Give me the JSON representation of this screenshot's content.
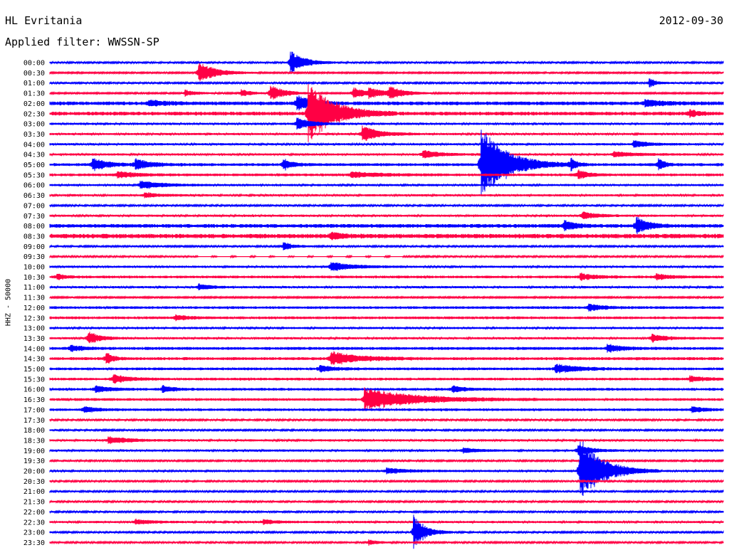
{
  "header": {
    "station": "HL Evritania",
    "date": "2012-09-30",
    "filter": "Applied filter: WWSSN-SP"
  },
  "colors": {
    "even_hour": "#0000ff",
    "half_hour": "#ff0044"
  },
  "chart_data": {
    "type": "line",
    "title": "HL Evritania",
    "subtitle": "Applied filter: WWSSN-SP",
    "ylabel": "HHZ - 50000",
    "xlabel": "",
    "grid": false,
    "legend": "none",
    "row_labels": [
      "00:00",
      "00:30",
      "01:00",
      "01:30",
      "02:00",
      "02:30",
      "03:00",
      "03:30",
      "04:00",
      "04:30",
      "05:00",
      "05:30",
      "06:00",
      "06:30",
      "07:00",
      "07:30",
      "08:00",
      "08:30",
      "09:00",
      "09:30",
      "10:00",
      "10:30",
      "11:00",
      "11:30",
      "12:00",
      "12:30",
      "13:00",
      "13:30",
      "14:00",
      "14:30",
      "15:00",
      "15:30",
      "16:00",
      "16:30",
      "17:00",
      "17:30",
      "18:00",
      "18:30",
      "19:00",
      "19:30",
      "20:00",
      "20:30",
      "21:00",
      "21:30",
      "22:00",
      "22:30",
      "23:00",
      "23:30"
    ],
    "x_unit": "minutes into row (0-30)",
    "noise_levels": [
      1.2,
      1.0,
      1.2,
      1.0,
      2.5,
      2.5,
      1.5,
      1.5,
      1.5,
      1.5,
      2.0,
      1.8,
      1.5,
      1.5,
      1.2,
      1.5,
      2.5,
      3.0,
      1.2,
      1.2,
      1.5,
      1.8,
      1.5,
      1.0,
      1.8,
      1.8,
      1.5,
      1.5,
      2.0,
      2.0,
      1.8,
      1.8,
      1.8,
      1.8,
      1.8,
      1.2,
      1.2,
      1.5,
      1.5,
      1.2,
      1.5,
      1.2,
      1.2,
      1.2,
      1.2,
      1.5,
      1.2,
      1.2
    ],
    "events": [
      {
        "row": "00:00",
        "t": 10.7,
        "amp": 18,
        "dur": 1.0
      },
      {
        "row": "00:30",
        "t": 6.6,
        "amp": 16,
        "dur": 1.2
      },
      {
        "row": "01:00",
        "t": 26.7,
        "amp": 7,
        "dur": 0.5
      },
      {
        "row": "01:30",
        "t": 6.0,
        "amp": 5,
        "dur": 0.8
      },
      {
        "row": "01:30",
        "t": 8.5,
        "amp": 6,
        "dur": 0.8
      },
      {
        "row": "01:30",
        "t": 9.8,
        "amp": 12,
        "dur": 1.0
      },
      {
        "row": "01:30",
        "t": 13.5,
        "amp": 8,
        "dur": 1.0
      },
      {
        "row": "01:30",
        "t": 14.2,
        "amp": 6,
        "dur": 1.2
      },
      {
        "row": "01:30",
        "t": 15.1,
        "amp": 9,
        "dur": 1.0
      },
      {
        "row": "02:00",
        "t": 11.0,
        "amp": 12,
        "dur": 1.0
      },
      {
        "row": "02:00",
        "t": 4.4,
        "amp": 4,
        "dur": 1.2
      },
      {
        "row": "02:00",
        "t": 26.5,
        "amp": 5,
        "dur": 1.2
      },
      {
        "row": "02:30",
        "t": 11.5,
        "amp": 45,
        "dur": 1.8
      },
      {
        "row": "02:30",
        "t": 28.5,
        "amp": 6,
        "dur": 0.5
      },
      {
        "row": "03:00",
        "t": 11.0,
        "amp": 9,
        "dur": 1.0
      },
      {
        "row": "03:30",
        "t": 13.9,
        "amp": 12,
        "dur": 1.2
      },
      {
        "row": "04:00",
        "t": 26.0,
        "amp": 5,
        "dur": 1.0
      },
      {
        "row": "04:30",
        "t": 16.6,
        "amp": 6,
        "dur": 1.2
      },
      {
        "row": "04:30",
        "t": 25.1,
        "amp": 4,
        "dur": 1.5
      },
      {
        "row": "05:00",
        "t": 1.9,
        "amp": 10,
        "dur": 1.0
      },
      {
        "row": "05:00",
        "t": 3.8,
        "amp": 8,
        "dur": 1.0
      },
      {
        "row": "05:00",
        "t": 10.4,
        "amp": 8,
        "dur": 0.6
      },
      {
        "row": "05:00",
        "t": 19.2,
        "amp": 55,
        "dur": 1.8
      },
      {
        "row": "05:00",
        "t": 23.2,
        "amp": 10,
        "dur": 0.4
      },
      {
        "row": "05:00",
        "t": 27.1,
        "amp": 10,
        "dur": 0.4
      },
      {
        "row": "05:30",
        "t": 3.0,
        "amp": 5,
        "dur": 1.2
      },
      {
        "row": "05:30",
        "t": 13.4,
        "amp": 4,
        "dur": 2.0
      },
      {
        "row": "05:30",
        "t": 23.5,
        "amp": 7,
        "dur": 0.7
      },
      {
        "row": "06:00",
        "t": 4.0,
        "amp": 6,
        "dur": 1.5
      },
      {
        "row": "06:30",
        "t": 4.2,
        "amp": 4,
        "dur": 1.0
      },
      {
        "row": "07:30",
        "t": 23.7,
        "amp": 6,
        "dur": 1.0
      },
      {
        "row": "08:00",
        "t": 22.9,
        "amp": 10,
        "dur": 0.6
      },
      {
        "row": "08:00",
        "t": 26.1,
        "amp": 13,
        "dur": 0.8
      },
      {
        "row": "08:30",
        "t": 12.5,
        "amp": 5,
        "dur": 0.8
      },
      {
        "row": "09:00",
        "t": 10.4,
        "amp": 6,
        "dur": 0.7
      },
      {
        "row": "10:00",
        "t": 12.5,
        "amp": 7,
        "dur": 1.5
      },
      {
        "row": "10:30",
        "t": 0.3,
        "amp": 4,
        "dur": 0.6
      },
      {
        "row": "10:30",
        "t": 23.6,
        "amp": 5,
        "dur": 1.0
      },
      {
        "row": "10:30",
        "t": 27.0,
        "amp": 4,
        "dur": 1.0
      },
      {
        "row": "11:00",
        "t": 6.6,
        "amp": 5,
        "dur": 0.8
      },
      {
        "row": "12:00",
        "t": 24.0,
        "amp": 5,
        "dur": 1.0
      },
      {
        "row": "12:30",
        "t": 5.6,
        "amp": 4,
        "dur": 0.8
      },
      {
        "row": "13:30",
        "t": 1.7,
        "amp": 10,
        "dur": 0.8
      },
      {
        "row": "13:30",
        "t": 26.8,
        "amp": 6,
        "dur": 1.0
      },
      {
        "row": "14:00",
        "t": 0.9,
        "amp": 5,
        "dur": 0.8
      },
      {
        "row": "14:00",
        "t": 24.8,
        "amp": 6,
        "dur": 1.0
      },
      {
        "row": "14:30",
        "t": 2.5,
        "amp": 9,
        "dur": 0.5
      },
      {
        "row": "14:30",
        "t": 12.5,
        "amp": 10,
        "dur": 2.0
      },
      {
        "row": "15:00",
        "t": 12.0,
        "amp": 5,
        "dur": 1.0
      },
      {
        "row": "15:00",
        "t": 22.5,
        "amp": 7,
        "dur": 1.5
      },
      {
        "row": "15:30",
        "t": 2.8,
        "amp": 7,
        "dur": 1.0
      },
      {
        "row": "15:30",
        "t": 28.5,
        "amp": 4,
        "dur": 1.0
      },
      {
        "row": "16:00",
        "t": 2.0,
        "amp": 5,
        "dur": 1.0
      },
      {
        "row": "16:00",
        "t": 5.0,
        "amp": 5,
        "dur": 0.7
      },
      {
        "row": "16:00",
        "t": 17.9,
        "amp": 5,
        "dur": 0.8
      },
      {
        "row": "16:30",
        "t": 14.0,
        "amp": 16,
        "dur": 3.5
      },
      {
        "row": "17:00",
        "t": 1.5,
        "amp": 5,
        "dur": 0.8
      },
      {
        "row": "17:00",
        "t": 28.6,
        "amp": 4,
        "dur": 0.8
      },
      {
        "row": "18:30",
        "t": 2.6,
        "amp": 5,
        "dur": 1.5
      },
      {
        "row": "19:00",
        "t": 18.4,
        "amp": 4,
        "dur": 1.0
      },
      {
        "row": "19:00",
        "t": 23.5,
        "amp": 8,
        "dur": 1.0
      },
      {
        "row": "20:00",
        "t": 23.6,
        "amp": 48,
        "dur": 1.6
      },
      {
        "row": "20:00",
        "t": 15.0,
        "amp": 4,
        "dur": 1.5
      },
      {
        "row": "22:30",
        "t": 3.8,
        "amp": 4,
        "dur": 1.0
      },
      {
        "row": "22:30",
        "t": 9.5,
        "amp": 3,
        "dur": 1.2
      },
      {
        "row": "23:00",
        "t": 16.2,
        "amp": 26,
        "dur": 0.8
      },
      {
        "row": "23:30",
        "t": 14.2,
        "amp": 4,
        "dur": 0.6
      }
    ],
    "gaps": [
      {
        "row": "09:30",
        "from": 6.4,
        "to": 15.7
      }
    ]
  }
}
